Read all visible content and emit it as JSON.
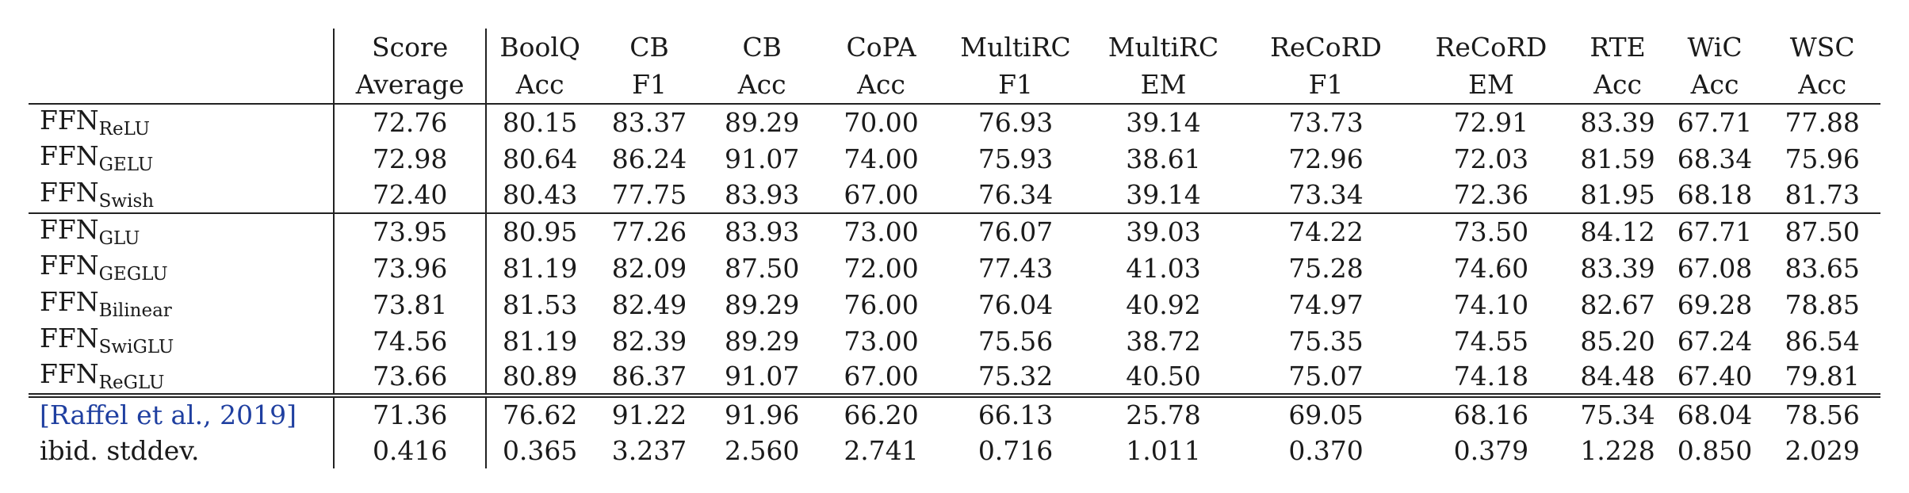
{
  "columns": [
    {
      "line1": "Score",
      "line2": "Average"
    },
    {
      "line1": "BoolQ",
      "line2": "Acc"
    },
    {
      "line1": "CB",
      "line2": "F1"
    },
    {
      "line1": "CB",
      "line2": "Acc"
    },
    {
      "line1": "CoPA",
      "line2": "Acc"
    },
    {
      "line1": "MultiRC",
      "line2": "F1"
    },
    {
      "line1": "MultiRC",
      "line2": "EM"
    },
    {
      "line1": "ReCoRD",
      "line2": "F1"
    },
    {
      "line1": "ReCoRD",
      "line2": "EM"
    },
    {
      "line1": "RTE",
      "line2": "Acc"
    },
    {
      "line1": "WiC",
      "line2": "Acc"
    },
    {
      "line1": "WSC",
      "line2": "Acc"
    }
  ],
  "groups": [
    {
      "rows": [
        {
          "base": "FFN",
          "sub": "ReLU",
          "values": [
            "72.76",
            "80.15",
            "83.37",
            "89.29",
            "70.00",
            "76.93",
            "39.14",
            "73.73",
            "72.91",
            "83.39",
            "67.71",
            "77.88"
          ],
          "bold": []
        },
        {
          "base": "FFN",
          "sub": "GELU",
          "values": [
            "72.98",
            "80.64",
            "86.24",
            "91.07",
            "74.00",
            "75.93",
            "38.61",
            "72.96",
            "72.03",
            "81.59",
            "68.34",
            "75.96"
          ],
          "bold": [
            3
          ]
        },
        {
          "base": "FFN",
          "sub": "Swish",
          "values": [
            "72.40",
            "80.43",
            "77.75",
            "83.93",
            "67.00",
            "76.34",
            "39.14",
            "73.34",
            "72.36",
            "81.95",
            "68.18",
            "81.73"
          ],
          "bold": []
        }
      ]
    },
    {
      "rows": [
        {
          "base": "FFN",
          "sub": "GLU",
          "values": [
            "73.95",
            "80.95",
            "77.26",
            "83.93",
            "73.00",
            "76.07",
            "39.03",
            "74.22",
            "73.50",
            "84.12",
            "67.71",
            "87.50"
          ],
          "bold": [
            11
          ]
        },
        {
          "base": "FFN",
          "sub": "GEGLU",
          "values": [
            "73.96",
            "81.19",
            "82.09",
            "87.50",
            "72.00",
            "77.43",
            "41.03",
            "75.28",
            "74.60",
            "83.39",
            "67.08",
            "83.65"
          ],
          "bold": [
            5,
            6,
            8
          ]
        },
        {
          "base": "FFN",
          "sub": "Bilinear",
          "values": [
            "73.81",
            "81.53",
            "82.49",
            "89.29",
            "76.00",
            "76.04",
            "40.92",
            "74.97",
            "74.10",
            "82.67",
            "69.28",
            "78.85"
          ],
          "bold": [
            1,
            4,
            10
          ]
        },
        {
          "base": "FFN",
          "sub": "SwiGLU",
          "values": [
            "74.56",
            "81.19",
            "82.39",
            "89.29",
            "73.00",
            "75.56",
            "38.72",
            "75.35",
            "74.55",
            "85.20",
            "67.24",
            "86.54"
          ],
          "bold": [
            0,
            7,
            9
          ]
        },
        {
          "base": "FFN",
          "sub": "ReGLU",
          "values": [
            "73.66",
            "80.89",
            "86.37",
            "91.07",
            "67.00",
            "75.32",
            "40.50",
            "75.07",
            "74.18",
            "84.48",
            "67.40",
            "79.81"
          ],
          "bold": [
            2,
            3
          ]
        }
      ]
    },
    {
      "rows": [
        {
          "cite_open": "[",
          "cite": "Raffel et al.",
          "cite_sep": ", ",
          "cite_year": "2019",
          "cite_close": "]",
          "values": [
            "71.36",
            "76.62",
            "91.22",
            "91.96",
            "66.20",
            "66.13",
            "25.78",
            "69.05",
            "68.16",
            "75.34",
            "68.04",
            "78.56"
          ],
          "bold": []
        },
        {
          "label": "ibid. stddev.",
          "values": [
            "0.416",
            "0.365",
            "3.237",
            "2.560",
            "2.741",
            "0.716",
            "1.011",
            "0.370",
            "0.379",
            "1.228",
            "0.850",
            "2.029"
          ],
          "bold": []
        }
      ]
    }
  ]
}
